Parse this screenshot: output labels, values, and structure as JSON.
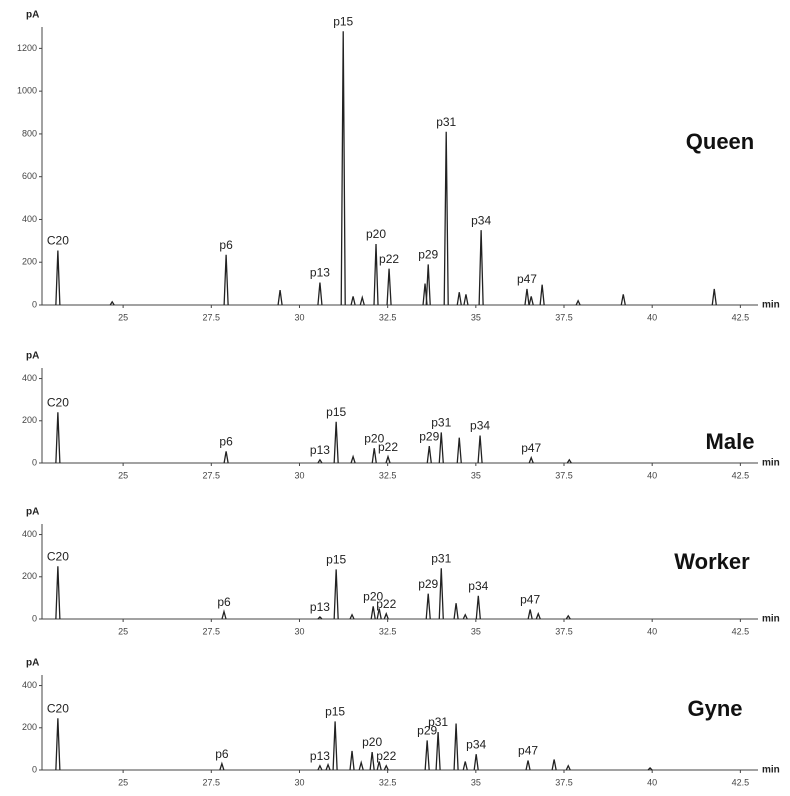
{
  "chart_data": [
    {
      "type": "chromatogram",
      "title": "Queen",
      "y_label": "pA",
      "x_label": "min",
      "color": "#222222",
      "xlim": [
        22.7,
        43.0
      ],
      "xticks": [
        25,
        27.5,
        30,
        32.5,
        35,
        37.5,
        40,
        42.5
      ],
      "ylim": [
        0,
        1300
      ],
      "yticks": [
        0,
        200,
        400,
        600,
        800,
        1000,
        1200
      ],
      "x": [
        23.15,
        24.69,
        27.92,
        29.45,
        30.58,
        31.24,
        31.52,
        31.78,
        32.17,
        32.54,
        33.56,
        33.65,
        34.16,
        34.53,
        34.72,
        35.15,
        36.45,
        36.57,
        36.88,
        37.9,
        39.18,
        41.76
      ],
      "values": [
        255,
        15,
        235,
        70,
        105,
        1280,
        40,
        35,
        285,
        170,
        100,
        190,
        810,
        60,
        50,
        350,
        75,
        40,
        95,
        20,
        50,
        75
      ],
      "labels": [
        "C20",
        null,
        "p6",
        null,
        "p13",
        "p15",
        null,
        null,
        "p20",
        "p22",
        null,
        "p29",
        "p31",
        null,
        null,
        "p34",
        "p47",
        null,
        null,
        null,
        null,
        null
      ]
    },
    {
      "type": "chromatogram",
      "title": "Male",
      "y_label": "pA",
      "x_label": "min",
      "color": "#222222",
      "xlim": [
        22.7,
        43.0
      ],
      "xticks": [
        25,
        27.5,
        30,
        32.5,
        35,
        37.5,
        40,
        42.5
      ],
      "ylim": [
        0,
        450
      ],
      "yticks": [
        0,
        200,
        400
      ],
      "x": [
        23.15,
        27.92,
        30.58,
        31.04,
        31.52,
        32.12,
        32.51,
        33.68,
        34.02,
        34.53,
        35.12,
        36.57,
        37.65
      ],
      "values": [
        240,
        55,
        15,
        195,
        30,
        70,
        30,
        80,
        145,
        120,
        130,
        25,
        15
      ],
      "labels": [
        "C20",
        "p6",
        "p13",
        "p15",
        null,
        "p20",
        "p22",
        "p29",
        "p31",
        null,
        "p34",
        "p47",
        null
      ]
    },
    {
      "type": "chromatogram",
      "title": "Worker",
      "y_label": "pA",
      "x_label": "min",
      "color": "#222222",
      "xlim": [
        22.7,
        43.0
      ],
      "xticks": [
        25,
        27.5,
        30,
        32.5,
        35,
        37.5,
        40,
        42.5
      ],
      "ylim": [
        0,
        450
      ],
      "yticks": [
        0,
        200,
        400
      ],
      "x": [
        23.15,
        27.86,
        30.58,
        31.04,
        31.49,
        32.09,
        32.26,
        32.46,
        33.65,
        34.02,
        34.44,
        34.7,
        35.07,
        36.54,
        36.77,
        37.62
      ],
      "values": [
        250,
        35,
        10,
        235,
        20,
        60,
        50,
        25,
        120,
        240,
        75,
        20,
        110,
        45,
        25,
        15
      ],
      "labels": [
        "C20",
        "p6",
        "p13",
        "p15",
        null,
        "p20",
        null,
        "p22",
        "p29",
        "p31",
        null,
        null,
        "p34",
        "p47",
        null,
        null
      ]
    },
    {
      "type": "chromatogram",
      "title": "Gyne",
      "y_label": "pA",
      "x_label": "min",
      "color": "#222222",
      "xlim": [
        22.7,
        43.0
      ],
      "xticks": [
        25,
        27.5,
        30,
        32.5,
        35,
        37.5,
        40,
        42.5
      ],
      "ylim": [
        0,
        450
      ],
      "yticks": [
        0,
        200,
        400
      ],
      "x": [
        23.15,
        27.8,
        30.58,
        30.81,
        31.01,
        31.49,
        31.75,
        32.06,
        32.26,
        32.46,
        33.62,
        33.93,
        34.44,
        34.7,
        35.01,
        36.48,
        37.22,
        37.62,
        39.94
      ],
      "values": [
        245,
        30,
        20,
        25,
        230,
        90,
        35,
        85,
        40,
        20,
        140,
        180,
        220,
        40,
        75,
        45,
        50,
        20,
        10
      ],
      "labels": [
        "C20",
        "p6",
        "p13",
        null,
        "p15",
        null,
        null,
        "p20",
        null,
        "p22",
        "p29",
        "p31",
        null,
        null,
        "p34",
        "p47",
        null,
        null,
        null
      ]
    }
  ]
}
